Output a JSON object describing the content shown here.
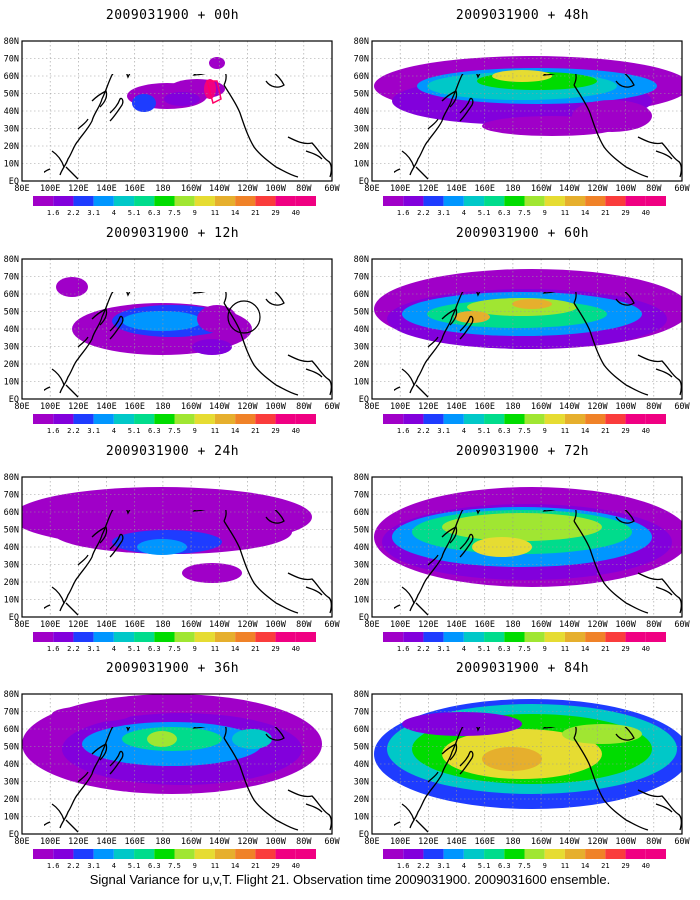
{
  "figure": {
    "caption": "Signal Variance for u,v,T. Flight 21. Observation time 2009031900. 2009031600 ensemble."
  },
  "axes": {
    "lat_labels": [
      "80N",
      "70N",
      "60N",
      "50N",
      "40N",
      "30N",
      "20N",
      "10N",
      "EQ"
    ],
    "lon_labels": [
      "80E",
      "100E",
      "120E",
      "140E",
      "160E",
      "180",
      "160W",
      "140W",
      "120W",
      "100W",
      "80W",
      "60W"
    ]
  },
  "colorbar": {
    "labels": [
      "1.6",
      "2.2",
      "3.1",
      "4",
      "5.1",
      "6.3",
      "7.5",
      "9",
      "11",
      "14",
      "21",
      "29",
      "40"
    ],
    "colors": [
      "#a000c8",
      "#8200dc",
      "#1e3cff",
      "#0096ff",
      "#00c8c8",
      "#00dc8c",
      "#00dc00",
      "#a0e632",
      "#e6dc32",
      "#e6af2d",
      "#f08228",
      "#fa3c3c",
      "#f00082"
    ]
  },
  "panels": [
    {
      "title": "2009031900 + 00h",
      "lead_hours": 0
    },
    {
      "title": "2009031900 + 48h",
      "lead_hours": 48
    },
    {
      "title": "2009031900 + 12h",
      "lead_hours": 12
    },
    {
      "title": "2009031900 + 60h",
      "lead_hours": 60
    },
    {
      "title": "2009031900 + 24h",
      "lead_hours": 24
    },
    {
      "title": "2009031900 + 72h",
      "lead_hours": 72
    },
    {
      "title": "2009031900 + 36h",
      "lead_hours": 36
    },
    {
      "title": "2009031900 + 84h",
      "lead_hours": 84
    }
  ]
}
